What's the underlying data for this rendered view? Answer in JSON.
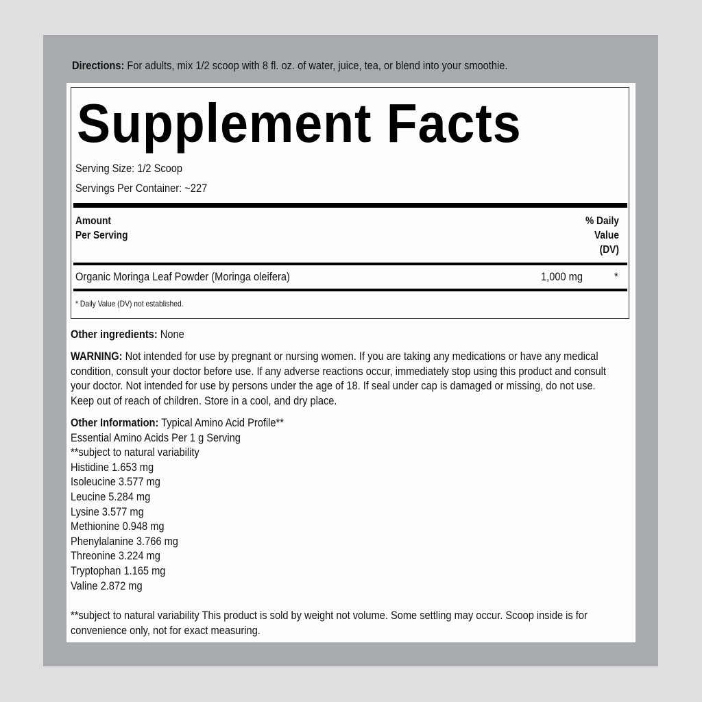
{
  "directions": {
    "label": "Directions:",
    "text": " For adults, mix 1/2 scoop with 8 fl. oz. of water, juice, tea, or blend into your smoothie."
  },
  "facts": {
    "title": "Supplement Facts",
    "serving_size": "Serving Size: 1/2 Scoop",
    "servings_per_container": "Servings Per Container: ~227",
    "header_amount": [
      "Amount",
      "Per Serving"
    ],
    "header_dv": [
      "% Daily",
      "Value",
      "(DV)"
    ],
    "rows": [
      {
        "name": "Organic Moringa Leaf Powder (Moringa oleifera)",
        "amount": "1,000 mg",
        "dv": "*"
      }
    ],
    "footnote": "* Daily Value (DV) not established."
  },
  "other_ingredients": {
    "label": "Other ingredients:",
    "text": " None"
  },
  "warning": {
    "label": "WARNING:",
    "lines": [
      " Not intended for use by pregnant or nursing women. If you are taking any medications or have any medical",
      "condition, consult your doctor before use. If any adverse reactions occur, immediately stop using this product and consult",
      "your doctor. Not intended for use by persons under the age of 18. If seal under cap is damaged or missing, do not use.",
      "Keep out of reach of children. Store in a cool, and dry place."
    ]
  },
  "other_information": {
    "label": "Other Information:",
    "text": " Typical Amino Acid Profile**",
    "lines": [
      "Essential Amino Acids Per 1 g Serving",
      "**subject to natural variability",
      "Histidine 1.653 mg",
      "Isoleucine 3.577 mg",
      "Leucine 5.284 mg",
      "Lysine 3.577 mg",
      "Methionine 0.948 mg",
      "Phenylalanine 3.766 mg",
      "Threonine 3.224 mg",
      "Tryptophan 1.165 mg",
      "Valine 2.872 mg"
    ]
  },
  "closing": [
    "**subject to natural variability This product is sold by weight not volume. Some settling may occur. Scoop inside is for",
    "convenience only, not for exact measuring."
  ]
}
